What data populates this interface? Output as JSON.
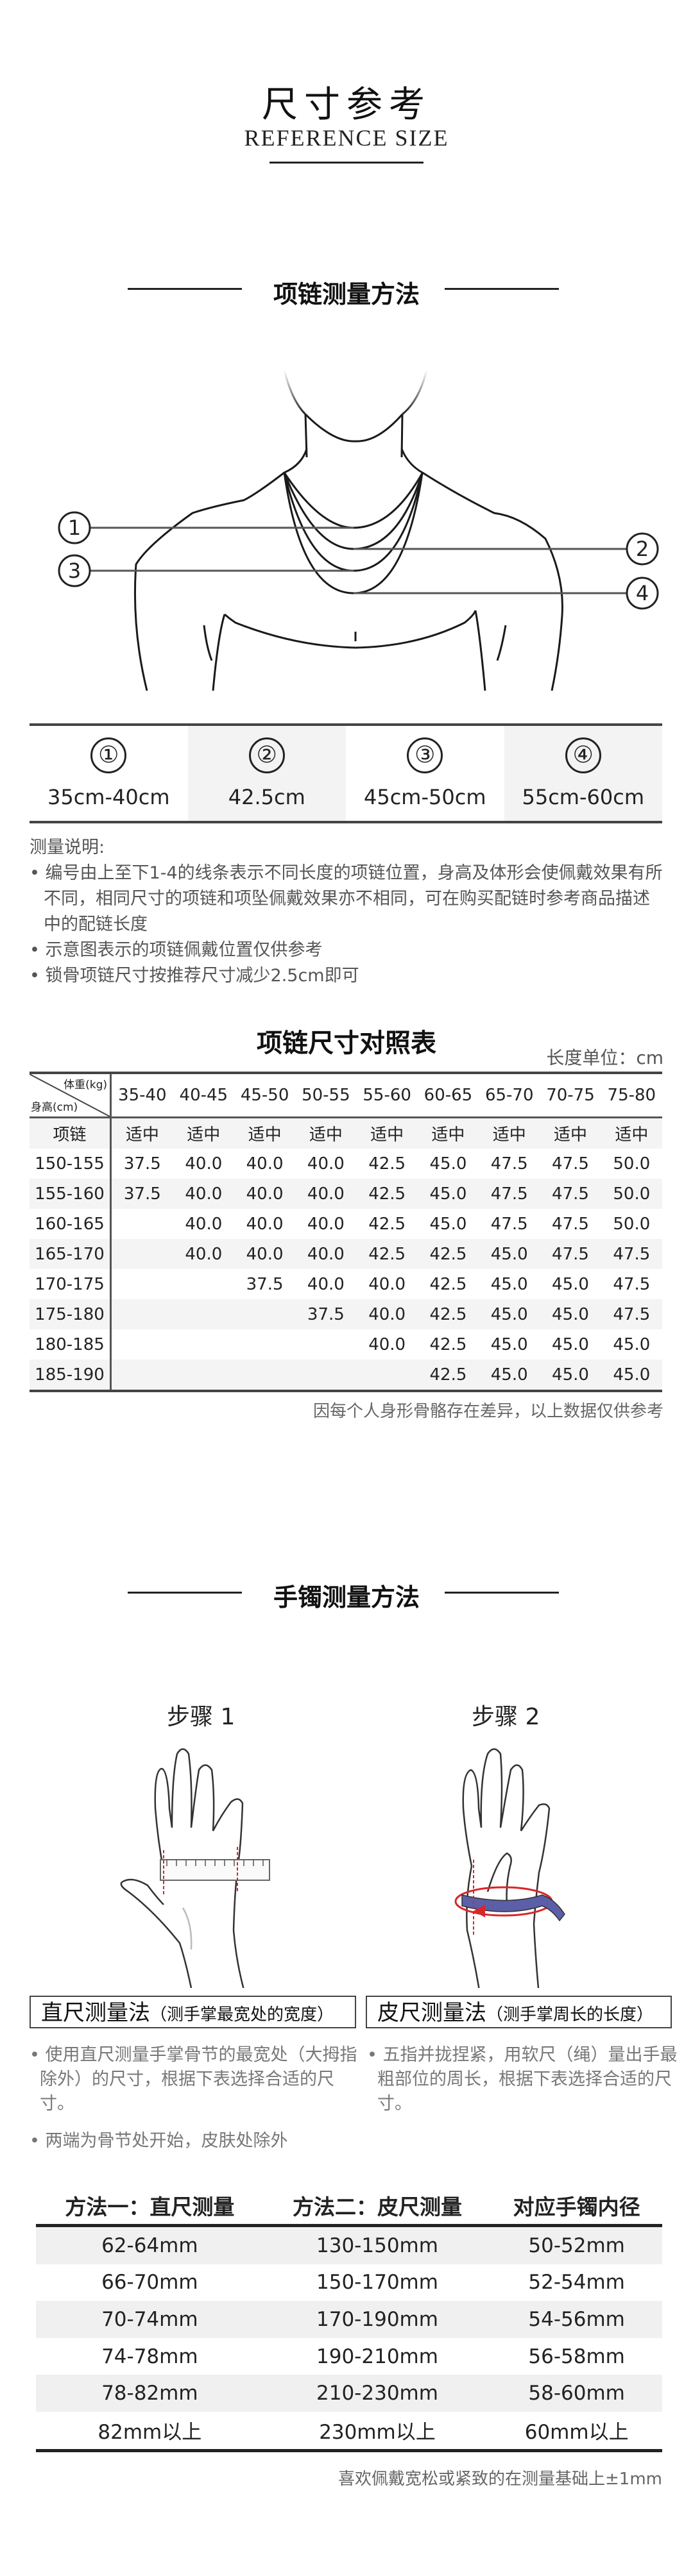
{
  "header": {
    "title_cn": "尺寸参考",
    "title_en": "REFERENCE SIZE"
  },
  "necklace": {
    "section_title": "项链测量方法",
    "positions": [
      {
        "num": "①",
        "length": "35cm-40cm"
      },
      {
        "num": "②",
        "length": "42.5cm"
      },
      {
        "num": "③",
        "length": "45cm-50cm"
      },
      {
        "num": "④",
        "length": "55cm-60cm"
      }
    ],
    "notes_title": "测量说明:",
    "notes": [
      "编号由上至下1-4的线条表示不同长度的项链位置，身高及体形会使佩戴效果有所不同，相同尺寸的项链和项坠佩戴效果亦不相同，可在购买配链时参考商品描述中的配链长度",
      "示意图表示的项链佩戴位置仅供参考",
      "锁骨项链尺寸按推荐尺寸减少2.5cm即可"
    ],
    "table_title": "项链尺寸对照表",
    "unit": "长度单位：cm",
    "corner_weight": "体重(kg)",
    "corner_height": "身高(cm)",
    "weights": [
      "35-40",
      "40-45",
      "45-50",
      "50-55",
      "55-60",
      "60-65",
      "65-70",
      "70-75",
      "75-80"
    ],
    "fit_label": "项链",
    "fit_values": [
      "适中",
      "适中",
      "适中",
      "适中",
      "适中",
      "适中",
      "适中",
      "适中",
      "适中"
    ],
    "rows": [
      {
        "height": "150-155",
        "values": [
          "37.5",
          "40.0",
          "40.0",
          "40.0",
          "42.5",
          "45.0",
          "47.5",
          "47.5",
          "50.0"
        ]
      },
      {
        "height": "155-160",
        "values": [
          "37.5",
          "40.0",
          "40.0",
          "40.0",
          "42.5",
          "45.0",
          "47.5",
          "47.5",
          "50.0"
        ]
      },
      {
        "height": "160-165",
        "values": [
          "",
          "40.0",
          "40.0",
          "40.0",
          "42.5",
          "45.0",
          "47.5",
          "47.5",
          "50.0"
        ]
      },
      {
        "height": "165-170",
        "values": [
          "",
          "40.0",
          "40.0",
          "40.0",
          "42.5",
          "42.5",
          "45.0",
          "47.5",
          "47.5"
        ]
      },
      {
        "height": "170-175",
        "values": [
          "",
          "",
          "37.5",
          "40.0",
          "40.0",
          "42.5",
          "45.0",
          "45.0",
          "47.5"
        ]
      },
      {
        "height": "175-180",
        "values": [
          "",
          "",
          "",
          "37.5",
          "40.0",
          "42.5",
          "45.0",
          "45.0",
          "47.5"
        ]
      },
      {
        "height": "180-185",
        "values": [
          "",
          "",
          "",
          "",
          "40.0",
          "42.5",
          "45.0",
          "45.0",
          "45.0"
        ]
      },
      {
        "height": "185-190",
        "values": [
          "",
          "",
          "",
          "",
          "",
          "42.5",
          "45.0",
          "45.0",
          "45.0"
        ]
      }
    ],
    "footnote": "因每个人身形骨骼存在差异，以上数据仅供参考"
  },
  "bracelet": {
    "section_title": "手镯测量方法",
    "step1": "步骤 1",
    "step2": "步骤 2",
    "method1_title": "直尺测量法",
    "method1_sub": "（测手掌最宽处的宽度）",
    "method2_title": "皮尺测量法",
    "method2_sub": "（测手掌周长的长度）",
    "method1_desc": "使用直尺测量手掌骨节的最宽处（大拇指除外）的尺寸，根据下表选择合适的尺寸。",
    "method2_desc": "五指并拢捏紧，用软尺（绳）量出手最粗部位的周长，根据下表选择合适的尺寸。",
    "extra_note": "两端为骨节处开始，皮肤处除外",
    "table_headers": [
      "方法一：直尺测量",
      "方法二：皮尺测量",
      "对应手镯内径"
    ],
    "rows": [
      [
        "62-64mm",
        "130-150mm",
        "50-52mm"
      ],
      [
        "66-70mm",
        "150-170mm",
        "52-54mm"
      ],
      [
        "70-74mm",
        "170-190mm",
        "54-56mm"
      ],
      [
        "74-78mm",
        "190-210mm",
        "56-58mm"
      ],
      [
        "78-82mm",
        "210-230mm",
        "58-60mm"
      ],
      [
        "82mm以上",
        "230mm以上",
        "60mm以上"
      ]
    ],
    "footnote": "喜欢佩戴宽松或紧致的在测量基础上±1mm"
  },
  "colors": {
    "text": "#222222",
    "shade": "#f3f3f3",
    "tape": "#5a5fa8",
    "marker_red": "#d9262b"
  }
}
